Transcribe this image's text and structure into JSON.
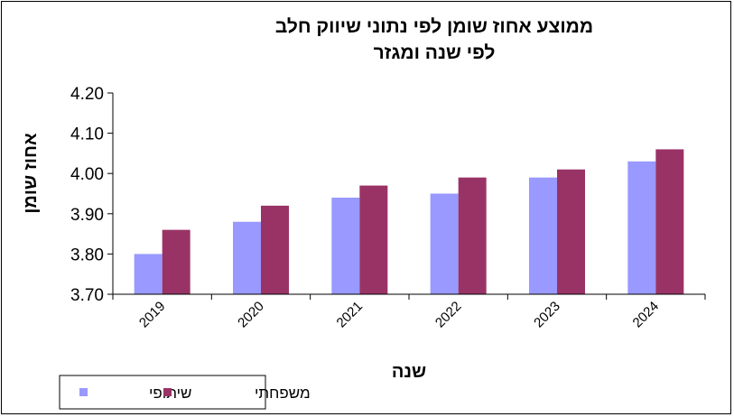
{
  "chart_data": {
    "type": "bar",
    "title_lines": [
      "ממוצע אחוז שומן לפי נתוני שיווק חלב",
      "לפי שנה ומגזר"
    ],
    "xlabel": "שנה",
    "ylabel": "אחוז שומן",
    "categories": [
      "2019",
      "2020",
      "2021",
      "2022",
      "2023",
      "2024"
    ],
    "ylim": [
      3.7,
      4.2
    ],
    "yticks": [
      "3.70",
      "3.80",
      "3.90",
      "4.00",
      "4.10",
      "4.20"
    ],
    "series": [
      {
        "name": "שיתופי",
        "color": "#9999FF",
        "values": [
          3.8,
          3.88,
          3.94,
          3.95,
          3.99,
          4.03
        ]
      },
      {
        "name": "משפחתי",
        "color": "#993366",
        "values": [
          3.86,
          3.92,
          3.97,
          3.99,
          4.01,
          4.06
        ]
      }
    ],
    "legend_position": "bottom-left",
    "grid": false
  }
}
